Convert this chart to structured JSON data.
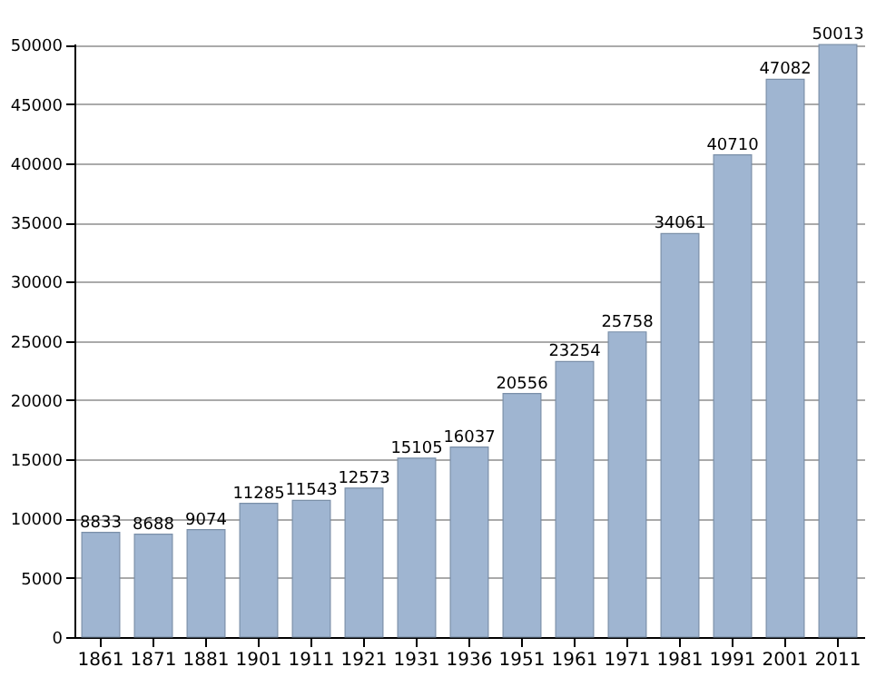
{
  "chart_data": {
    "type": "bar",
    "categories": [
      "1861",
      "1871",
      "1881",
      "1901",
      "1911",
      "1921",
      "1931",
      "1936",
      "1951",
      "1961",
      "1971",
      "1981",
      "1991",
      "2001",
      "2011"
    ],
    "values": [
      8833,
      8688,
      9074,
      11285,
      11543,
      12573,
      15105,
      16037,
      20556,
      23254,
      25758,
      34061,
      40710,
      47082,
      50013
    ],
    "color": "#9fb5d1",
    "data_labels": true,
    "grid": "y",
    "ylim": [
      0,
      50100
    ],
    "yticks": [
      0,
      5000,
      10000,
      15000,
      20000,
      25000,
      30000,
      35000,
      40000,
      45000,
      50000
    ]
  }
}
